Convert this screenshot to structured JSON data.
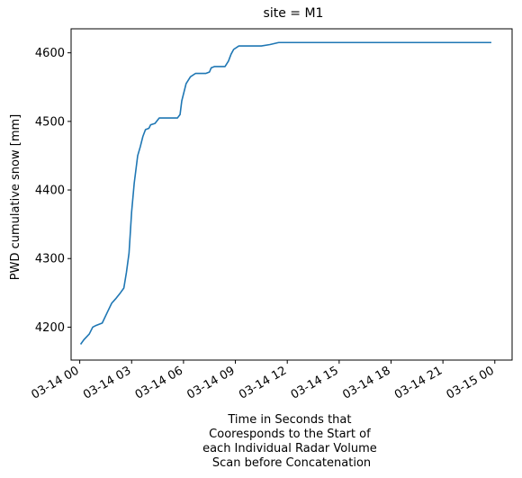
{
  "chart_data": {
    "type": "line",
    "title": "site = M1",
    "ylabel": "PWD cumulative snow [mm]",
    "xlabel_lines": [
      "Time in Seconds that",
      "Cooresponds to the Start of",
      "each Individual Radar Volume",
      "Scan before Concatenation"
    ],
    "x_unit": "hours since 03-14 00:00",
    "xlim": [
      -0.5,
      25.0
    ],
    "ylim": [
      4152,
      4635
    ],
    "xticks": [
      {
        "value": 0,
        "label": "03-14 00"
      },
      {
        "value": 3,
        "label": "03-14 03"
      },
      {
        "value": 6,
        "label": "03-14 06"
      },
      {
        "value": 9,
        "label": "03-14 09"
      },
      {
        "value": 12,
        "label": "03-14 12"
      },
      {
        "value": 15,
        "label": "03-14 15"
      },
      {
        "value": 18,
        "label": "03-14 18"
      },
      {
        "value": 21,
        "label": "03-14 21"
      },
      {
        "value": 24,
        "label": "03-15 00"
      }
    ],
    "yticks": [
      {
        "value": 4200,
        "label": "4200"
      },
      {
        "value": 4300,
        "label": "4300"
      },
      {
        "value": 4400,
        "label": "4400"
      },
      {
        "value": 4500,
        "label": "4500"
      },
      {
        "value": 4600,
        "label": "4600"
      }
    ],
    "grid": false,
    "series": [
      {
        "color": "#1f77b4",
        "x": [
          0.05,
          0.25,
          0.55,
          0.75,
          0.9,
          1.3,
          1.6,
          1.85,
          2.1,
          2.35,
          2.55,
          2.7,
          2.85,
          3.0,
          3.15,
          3.35,
          3.5,
          3.65,
          3.8,
          4.0,
          4.1,
          4.35,
          4.6,
          5.0,
          5.35,
          5.65,
          5.8,
          5.9,
          6.15,
          6.4,
          6.7,
          7.0,
          7.3,
          7.5,
          7.6,
          7.8,
          8.1,
          8.4,
          8.6,
          8.75,
          8.9,
          9.2,
          9.6,
          10.0,
          10.5,
          11.0,
          11.5,
          12.0,
          15.0,
          18.0,
          21.0,
          23.8
        ],
        "y": [
          4175,
          4182,
          4190,
          4200,
          4202,
          4206,
          4222,
          4235,
          4242,
          4250,
          4257,
          4280,
          4308,
          4368,
          4410,
          4450,
          4463,
          4478,
          4488,
          4490,
          4495,
          4497,
          4505,
          4505,
          4505,
          4505,
          4510,
          4530,
          4555,
          4565,
          4570,
          4570,
          4570,
          4572,
          4578,
          4580,
          4580,
          4580,
          4588,
          4598,
          4605,
          4610,
          4610,
          4610,
          4610,
          4612,
          4615,
          4615,
          4615,
          4615,
          4615,
          4615
        ]
      }
    ]
  }
}
